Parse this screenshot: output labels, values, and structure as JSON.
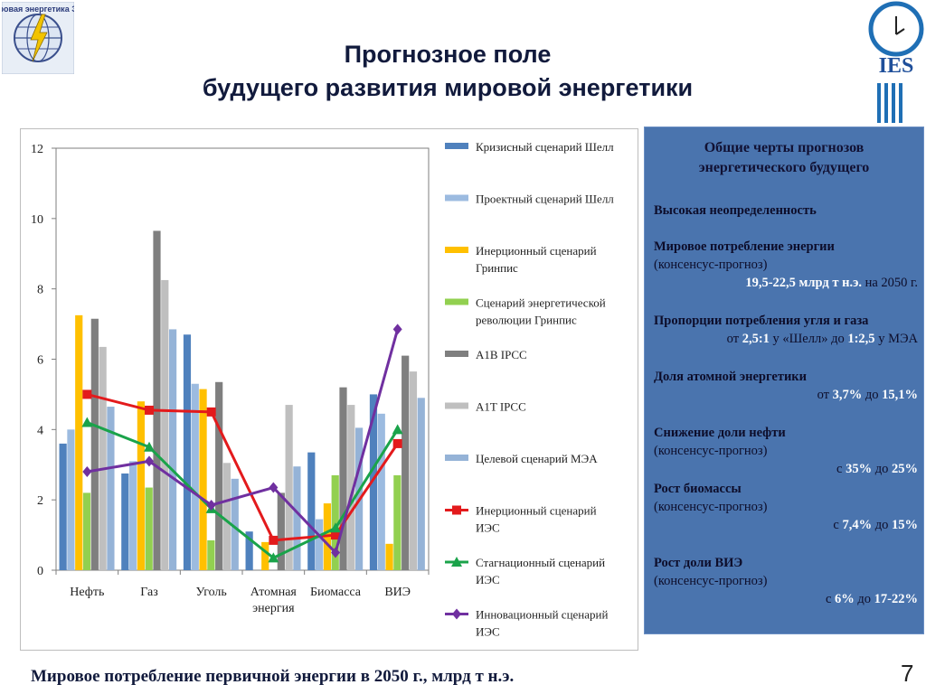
{
  "header": {
    "title_line1": "Прогнозное поле",
    "title_line2": "будущего развития мировой энергетики",
    "logo_left_text": "мировая энергетика ЭКЦ",
    "logo_right_text": "IES"
  },
  "chart_data": {
    "type": "bar",
    "title": "Мировое потребление первичной энергии в 2050 г., млрд т н.э.",
    "ylim": [
      0,
      12
    ],
    "yticks": [
      "0",
      "2",
      "4",
      "6",
      "8",
      "10",
      "12"
    ],
    "categories": [
      "Нефть",
      "Газ",
      "Уголь",
      "Атомная энергия",
      "Биомасса",
      "ВИЭ"
    ],
    "category_labels": [
      [
        "Нефть"
      ],
      [
        "Газ"
      ],
      [
        "Уголь"
      ],
      [
        "Атомная",
        "энергия"
      ],
      [
        "Биомасса"
      ],
      [
        "ВИЭ"
      ]
    ],
    "series": [
      {
        "name": "Кризисный сценарий Шелл",
        "legend_lines": [
          "Кризисный сценарий Шелл"
        ],
        "kind": "bar",
        "color": "#4f81bd",
        "values": [
          3.6,
          2.75,
          6.7,
          1.1,
          3.35,
          5.0
        ]
      },
      {
        "name": "Проектный сценарий Шелл",
        "legend_lines": [
          "Проектный сценарий Шелл"
        ],
        "kind": "bar",
        "color": "#9cbbe0",
        "values": [
          4.0,
          3.1,
          5.3,
          0.0,
          1.45,
          4.45
        ]
      },
      {
        "name": "Инерционный сценарий Гринпис",
        "legend_lines": [
          "Инерционный сценарий",
          "Гринпис"
        ],
        "kind": "bar",
        "color": "#ffc000",
        "values": [
          7.25,
          4.8,
          5.15,
          0.8,
          1.9,
          0.75
        ]
      },
      {
        "name": "Сценарий энергетической революции Гринпис",
        "legend_lines": [
          "Сценарий энергетической",
          "революции Гринпис"
        ],
        "kind": "bar",
        "color": "#92d050",
        "values": [
          2.2,
          2.35,
          0.85,
          0.0,
          2.7,
          2.7
        ]
      },
      {
        "name": "A1B IPCC",
        "legend_lines": [
          "A1B  IPCC"
        ],
        "kind": "bar",
        "color": "#7f7f7f",
        "values": [
          7.15,
          9.65,
          5.35,
          2.2,
          5.2,
          6.1
        ]
      },
      {
        "name": "A1T IPCC",
        "legend_lines": [
          "A1T  IPCC"
        ],
        "kind": "bar",
        "color": "#bfbfbf",
        "values": [
          6.35,
          8.25,
          3.05,
          4.7,
          4.7,
          5.65
        ]
      },
      {
        "name": "Целевой сценарий МЭА",
        "legend_lines": [
          "Целевой сценарий МЭА"
        ],
        "kind": "bar",
        "color": "#95b3d7",
        "values": [
          4.65,
          6.85,
          2.6,
          2.95,
          4.05,
          4.9
        ]
      },
      {
        "name": "Инерционный сценарий ИЭС",
        "legend_lines": [
          "Инерционный сценарий",
          "ИЭС"
        ],
        "kind": "line",
        "marker": "square",
        "color": "#e31a1c",
        "values": [
          5.0,
          4.55,
          4.5,
          0.85,
          1.0,
          3.6
        ]
      },
      {
        "name": "Стагнационный сценарий ИЭС",
        "legend_lines": [
          "Стагнационный сценарий",
          "ИЭС"
        ],
        "kind": "line",
        "marker": "triangle",
        "color": "#1aa34a",
        "values": [
          4.2,
          3.5,
          1.75,
          0.35,
          1.2,
          4.0
        ]
      },
      {
        "name": "Инновационный сценарий ИЭС",
        "legend_lines": [
          "Инновационный сценарий",
          "ИЭС"
        ],
        "kind": "line",
        "marker": "diamond",
        "color": "#7030a0",
        "values": [
          2.8,
          3.1,
          1.85,
          2.35,
          0.5,
          6.85
        ]
      }
    ]
  },
  "panel": {
    "title_line1": "Общие черты прогнозов",
    "title_line2": "энергетического будущего",
    "s1_head": "Высокая неопределенность",
    "s2_head": "Мировое потребление энергии",
    "s2_sub": "(консенсус-прогноз)",
    "s2_val": "19,5-22,5 млрд т н.э.",
    "s2_tail": " на 2050 г.",
    "s3_head": "Пропорции потребления угля и газа",
    "s3_p1": "от ",
    "s3_v1": "2,5:1",
    "s3_p2": " у «Шелл» до ",
    "s3_v2": "1:2,5",
    "s3_p3": " у МЭА",
    "s4_head": "Доля атомной энергетики",
    "s4_p1": "от ",
    "s4_v1": "3,7%",
    "s4_p2": " до ",
    "s4_v2": "15,1%",
    "s5_head": "Снижение доли нефти",
    "s5_sub": "(консенсус-прогноз)",
    "s5_p1": "с ",
    "s5_v1": "35%",
    "s5_p2": " до ",
    "s5_v2": "25%",
    "s6_head": "Рост биомассы",
    "s6_sub": "(консенсус-прогноз)",
    "s6_p1": "с ",
    "s6_v1": "7,4%",
    "s6_p2": " до ",
    "s6_v2": "15%",
    "s7_head": "Рост доли ВИЭ",
    "s7_sub": "(консенсус-прогноз)",
    "s7_p1": "с ",
    "s7_v1": "6%",
    "s7_p2": " до ",
    "s7_v2": "17-22%"
  },
  "footer": {
    "caption": "Мировое потребление первичной энергии в 2050 г., млрд т н.э.",
    "page_number": "7"
  }
}
